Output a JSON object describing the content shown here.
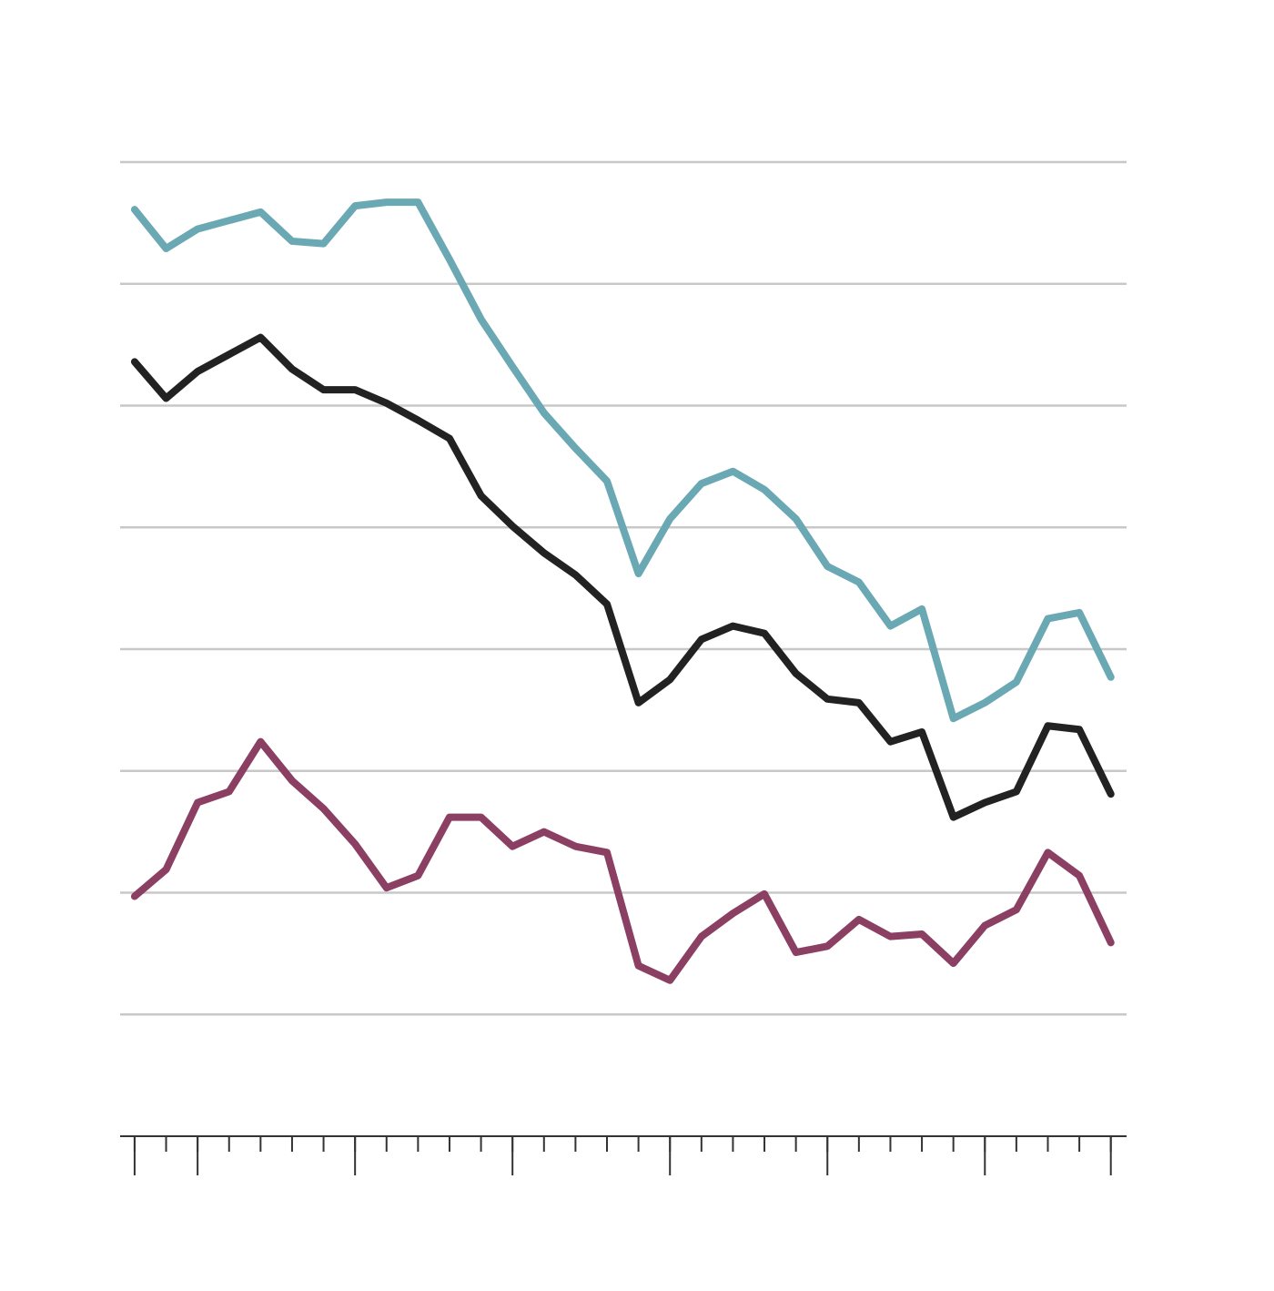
{
  "chart_data": {
    "type": "line",
    "x": [
      0,
      1,
      2,
      3,
      4,
      5,
      6,
      7,
      8,
      9,
      10,
      11,
      12,
      13,
      14,
      15,
      16,
      17,
      18,
      19,
      20,
      21,
      22,
      23,
      24,
      25,
      26,
      27,
      28,
      29,
      30,
      31
    ],
    "xlim": [
      -0.46,
      31.5
    ],
    "xticks": [
      0,
      1,
      2,
      3,
      4,
      5,
      6,
      7,
      8,
      9,
      10,
      11,
      12,
      13,
      14,
      15,
      16,
      17,
      18,
      19,
      20,
      21,
      22,
      23,
      24,
      25,
      26,
      27,
      28,
      29,
      30,
      31
    ],
    "xticks_major": [
      0,
      2,
      7,
      12,
      17,
      22,
      27,
      31
    ],
    "ylim": [
      0,
      8
    ],
    "yticks": [
      1,
      2,
      3,
      4,
      5,
      6,
      7,
      8
    ],
    "grid": true,
    "series": [
      {
        "color": "#6aa8b3",
        "values": [
          7.61,
          7.29,
          7.45,
          7.52,
          7.59,
          7.35,
          7.33,
          7.64,
          7.67,
          7.67,
          7.2,
          6.71,
          6.32,
          5.94,
          5.65,
          5.38,
          4.62,
          5.07,
          5.36,
          5.46,
          5.31,
          5.07,
          4.68,
          4.55,
          4.19,
          4.33,
          3.43,
          3.56,
          3.73,
          4.25,
          4.3,
          3.77
        ]
      },
      {
        "color": "#222222",
        "values": [
          6.36,
          6.06,
          6.28,
          6.42,
          6.56,
          6.3,
          6.13,
          6.13,
          6.02,
          5.88,
          5.73,
          5.26,
          5.01,
          4.79,
          4.61,
          4.37,
          3.56,
          3.75,
          4.08,
          4.19,
          4.13,
          3.8,
          3.59,
          3.56,
          3.24,
          3.32,
          2.62,
          2.74,
          2.83,
          3.37,
          3.34,
          2.81
        ]
      },
      {
        "color": "#8b3f62",
        "values": [
          1.97,
          2.19,
          2.74,
          2.83,
          3.24,
          2.92,
          2.69,
          2.4,
          2.04,
          2.14,
          2.62,
          2.62,
          2.38,
          2.5,
          2.38,
          2.33,
          1.4,
          1.28,
          1.64,
          1.83,
          1.99,
          1.51,
          1.56,
          1.78,
          1.64,
          1.66,
          1.42,
          1.73,
          1.86,
          2.33,
          2.14,
          1.59
        ]
      }
    ]
  }
}
